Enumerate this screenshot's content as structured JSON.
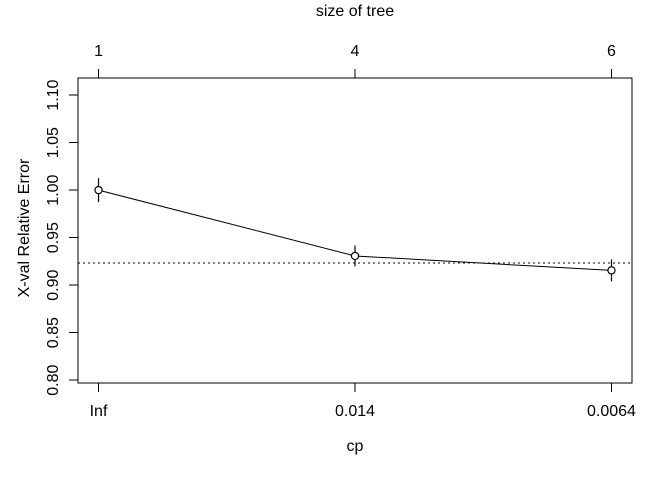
{
  "chart_data": {
    "type": "line",
    "title": "size of tree",
    "xlabel": "cp",
    "ylabel": "X-val Relative Error",
    "x_axis_top": {
      "label": "size of tree",
      "ticks": [
        "1",
        "4",
        "6"
      ]
    },
    "x_axis_bottom": {
      "label": "cp",
      "ticks": [
        "Inf",
        "0.014",
        "0.0064"
      ]
    },
    "x_positions": [
      1,
      2,
      3
    ],
    "y_axis": {
      "label": "X-val Relative Error",
      "ticks": [
        "0.80",
        "0.85",
        "0.90",
        "0.95",
        "1.00",
        "1.05",
        "1.10"
      ]
    },
    "xlim": [
      0.92,
      3.08
    ],
    "ylim": [
      0.797,
      1.118
    ],
    "series": [
      {
        "name": "X-val Relative Error",
        "x": [
          1,
          2,
          3
        ],
        "y": [
          1.0,
          0.9307,
          0.9155
        ],
        "yerr": [
          0.0126,
          0.011,
          0.0115
        ]
      }
    ],
    "hline": {
      "y": 0.9233,
      "style": "dotted"
    },
    "marker": "open-circle",
    "grid": false,
    "legend": "none",
    "colors": {
      "foreground": "#000000",
      "background": "#ffffff"
    }
  }
}
